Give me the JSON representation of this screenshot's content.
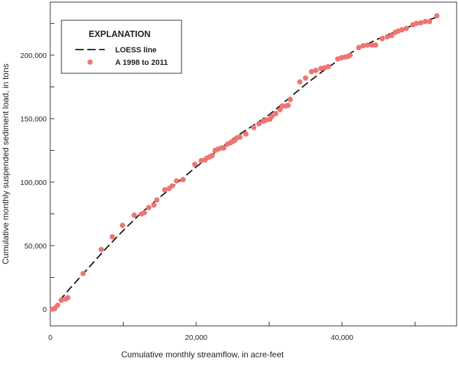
{
  "chart_data": {
    "type": "scatter",
    "xlabel": "Cumulative monthly streamflow, in acre-feet",
    "ylabel": "Cumulative monthly suspended sediment load, in tons",
    "xlim": [
      0,
      55700
    ],
    "ylim": [
      -13200,
      241800
    ],
    "x_ticks": [
      0,
      10000,
      20000,
      30000,
      40000,
      50000
    ],
    "x_tick_labels": [
      "0",
      "",
      "20,000",
      "",
      "40,000",
      ""
    ],
    "y_ticks": [
      0,
      25000,
      50000,
      75000,
      100000,
      125000,
      150000,
      175000,
      200000,
      225000
    ],
    "y_tick_labels": [
      "0",
      "",
      "50,000",
      "",
      "100,000",
      "",
      "150,000",
      "",
      "200,000",
      ""
    ],
    "grid": false,
    "legend": {
      "title": "EXPLANATION",
      "placement": "top-left",
      "entries": [
        "LOESS line",
        "A 1998 to 2011"
      ]
    },
    "colors": {
      "points": "#f07470",
      "line": "#111111"
    },
    "series": [
      {
        "name": "A 1998 to 2011",
        "type": "scatter",
        "x": [
          300,
          600,
          1000,
          1500,
          2100,
          2400,
          4500,
          7000,
          8500,
          9900,
          11500,
          12500,
          12900,
          13500,
          14200,
          14600,
          15700,
          16300,
          16700,
          17300,
          18200,
          19800,
          20700,
          21200,
          21500,
          21900,
          22200,
          22600,
          23000,
          23500,
          23800,
          24300,
          24700,
          25000,
          25300,
          25600,
          26000,
          26800,
          27900,
          28600,
          29200,
          29600,
          30100,
          30400,
          30900,
          31500,
          31800,
          32300,
          32600,
          32900,
          34200,
          35000,
          35800,
          36400,
          37100,
          37600,
          38100,
          39400,
          39900,
          40400,
          40800,
          41100,
          42300,
          42900,
          43500,
          44100,
          44600,
          45500,
          46200,
          46800,
          47300,
          47700,
          48200,
          48800,
          49700,
          50200,
          50800,
          51400,
          52000,
          53000
        ],
        "y": [
          0,
          500,
          3000,
          7000,
          8000,
          9000,
          28000,
          47000,
          57000,
          66000,
          74000,
          75000,
          76000,
          80000,
          82000,
          86000,
          94000,
          95000,
          97000,
          101000,
          102000,
          114000,
          117000,
          117500,
          119000,
          120000,
          121000,
          125000,
          126000,
          127000,
          127000,
          130000,
          131000,
          132000,
          133000,
          135000,
          135500,
          138000,
          143000,
          146000,
          148000,
          149000,
          149500,
          152000,
          154000,
          157000,
          160000,
          160000,
          160500,
          165000,
          179000,
          182000,
          187000,
          188000,
          189500,
          190000,
          191000,
          197000,
          198000,
          198500,
          199000,
          200000,
          206000,
          207500,
          208000,
          208000,
          208000,
          213000,
          214500,
          215500,
          218000,
          219000,
          220000,
          221000,
          224000,
          225000,
          225500,
          226500,
          226500,
          231000
        ]
      },
      {
        "name": "LOESS line",
        "type": "line",
        "x": [
          300,
          2500,
          5000,
          7500,
          10000,
          12500,
          15000,
          17500,
          20000,
          22500,
          25000,
          27500,
          30000,
          32500,
          35000,
          37500,
          40000,
          42500,
          45000,
          47500,
          50000,
          53000
        ],
        "y": [
          0,
          15000,
          31000,
          47000,
          62000,
          76000,
          88000,
          100000,
          112000,
          123000,
          134000,
          143500,
          153000,
          165000,
          177000,
          188000,
          198000,
          206000,
          213000,
          219000,
          224000,
          230000
        ]
      }
    ]
  }
}
